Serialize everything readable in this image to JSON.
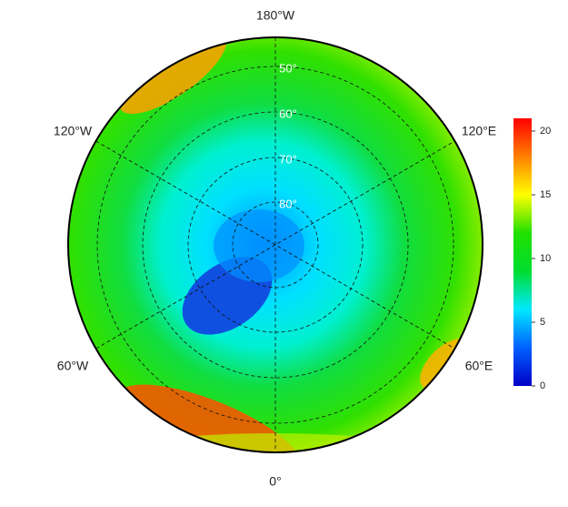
{
  "map": {
    "longitude_labels": [
      "180°W",
      "120°W",
      "120°E",
      "60°W",
      "60°E",
      "0°"
    ],
    "latitude_labels": [
      "50°",
      "60°",
      "70°",
      "80°"
    ]
  },
  "colorbar": {
    "lim": [
      0,
      21
    ],
    "ticks": [
      0,
      5,
      10,
      15,
      20
    ],
    "colors": [
      "#0000c8",
      "#0060ff",
      "#00e8ff",
      "#00dd30",
      "#20e000",
      "#ffff00",
      "#ff8000",
      "#ff0000"
    ]
  }
}
